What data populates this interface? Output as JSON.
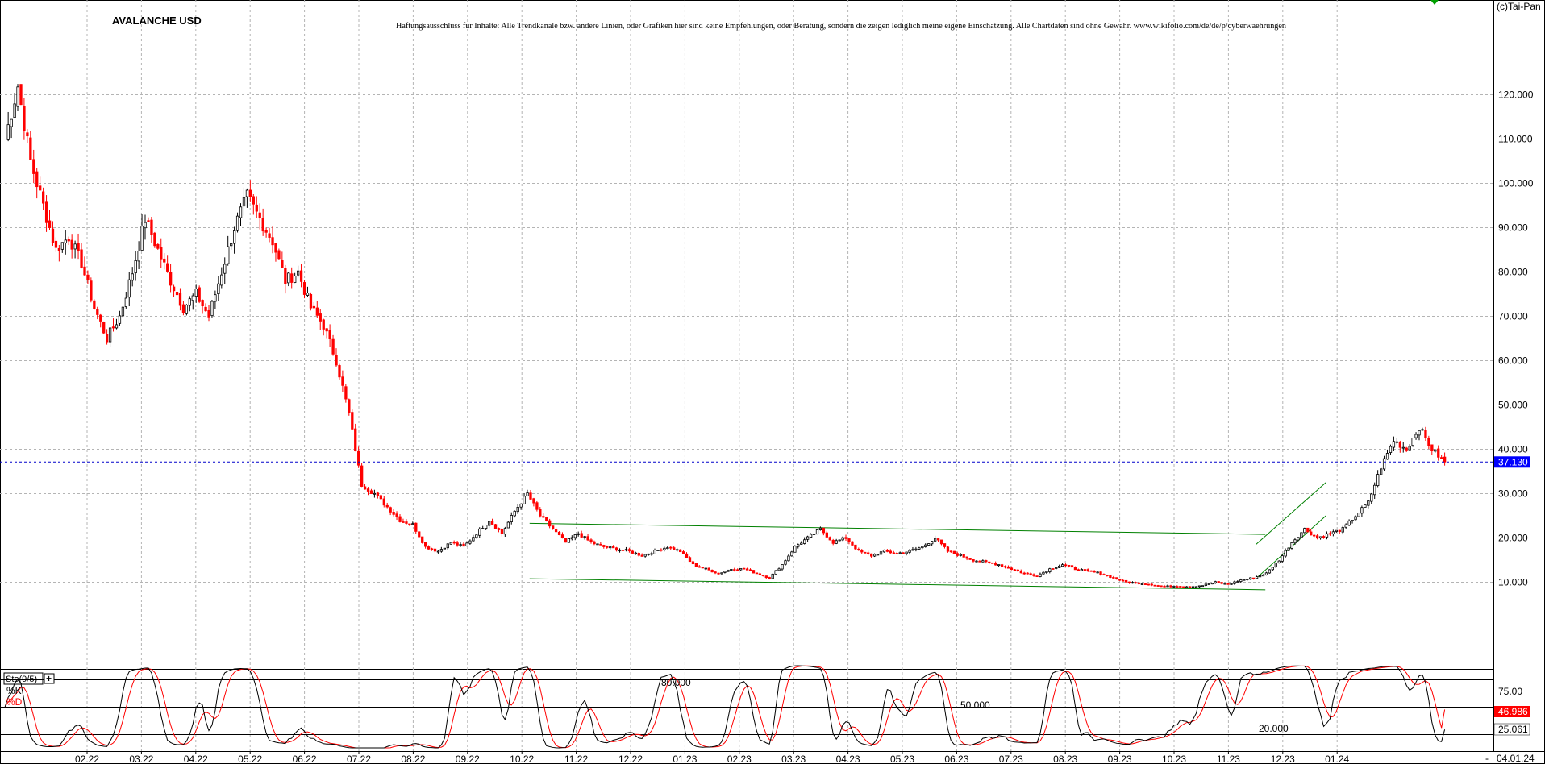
{
  "chart_data": {
    "type": "candlestick",
    "title": "AVALANCHE USD",
    "disclaimer": "Haftungsausschluss für Inhalte: Alle Trendkanäle bzw. andere Linien, oder Grafiken hier sind keine Empfehlungen, oder Beratung, sondern die zeigen lediglich meine eigene Einschätzung. Alle Chartdaten sind ohne Gewähr.  www.wikifolio.com/de/de/p/cyberwaehrungen",
    "copyright": "(c)Tai-Pan",
    "last_price": 37.13,
    "last_price_label": "37.130",
    "ylim": [
      0,
      124
    ],
    "y_ticks": [
      "10.000",
      "20.000",
      "30.000",
      "40.000",
      "50.000",
      "60.000",
      "70.000",
      "80.000",
      "90.000",
      "100.000",
      "110.000",
      "120.000"
    ],
    "x_ticks": [
      "02.22",
      "03.22",
      "04.22",
      "05.22",
      "06.22",
      "07.22",
      "08.22",
      "09.22",
      "10.22",
      "11.22",
      "12.22",
      "01.23",
      "02.23",
      "03.23",
      "04.23",
      "05.23",
      "06.23",
      "07.23",
      "08.23",
      "09.23",
      "10.23",
      "11.23",
      "12.23",
      "01.24"
    ],
    "x_end_label": "04.01.24",
    "colors": {
      "up": "#000000",
      "down": "#ff0000",
      "trendline": "#008000",
      "last_price_bg": "#0000ff",
      "k_line": "#000000",
      "d_line": "#ff0000",
      "d_value_bg": "#ff0000"
    },
    "price_anchors": [
      [
        0,
        110
      ],
      [
        4,
        122
      ],
      [
        8,
        105
      ],
      [
        12,
        95
      ],
      [
        16,
        85
      ],
      [
        20,
        88
      ],
      [
        24,
        82
      ],
      [
        28,
        72
      ],
      [
        32,
        65
      ],
      [
        36,
        70
      ],
      [
        40,
        80
      ],
      [
        44,
        92
      ],
      [
        48,
        85
      ],
      [
        52,
        78
      ],
      [
        56,
        72
      ],
      [
        60,
        75
      ],
      [
        64,
        70
      ],
      [
        68,
        80
      ],
      [
        72,
        90
      ],
      [
        76,
        97
      ],
      [
        80,
        92
      ],
      [
        84,
        87
      ],
      [
        88,
        78
      ],
      [
        92,
        80
      ],
      [
        96,
        72
      ],
      [
        100,
        68
      ],
      [
        104,
        60
      ],
      [
        108,
        48
      ],
      [
        112,
        32
      ],
      [
        116,
        30
      ],
      [
        120,
        27
      ],
      [
        124,
        24
      ],
      [
        128,
        23
      ],
      [
        132,
        18
      ],
      [
        136,
        17
      ],
      [
        140,
        19
      ],
      [
        144,
        18
      ],
      [
        148,
        21
      ],
      [
        152,
        24
      ],
      [
        156,
        21
      ],
      [
        160,
        26
      ],
      [
        164,
        30
      ],
      [
        168,
        25
      ],
      [
        172,
        22
      ],
      [
        176,
        19
      ],
      [
        180,
        21
      ],
      [
        184,
        19
      ],
      [
        188,
        18
      ],
      [
        192,
        17.5
      ],
      [
        196,
        17
      ],
      [
        200,
        16
      ],
      [
        204,
        17
      ],
      [
        208,
        18
      ],
      [
        212,
        17
      ],
      [
        216,
        14
      ],
      [
        220,
        13
      ],
      [
        224,
        12
      ],
      [
        228,
        13
      ],
      [
        232,
        13
      ],
      [
        236,
        12
      ],
      [
        240,
        11
      ],
      [
        244,
        14
      ],
      [
        248,
        18
      ],
      [
        252,
        20
      ],
      [
        256,
        22
      ],
      [
        260,
        19
      ],
      [
        264,
        20
      ],
      [
        268,
        17
      ],
      [
        272,
        16
      ],
      [
        276,
        17
      ],
      [
        280,
        16.5
      ],
      [
        284,
        17
      ],
      [
        288,
        18
      ],
      [
        292,
        20
      ],
      [
        296,
        17
      ],
      [
        300,
        16
      ],
      [
        304,
        15
      ],
      [
        308,
        14.5
      ],
      [
        312,
        14
      ],
      [
        316,
        13
      ],
      [
        320,
        12
      ],
      [
        324,
        11.5
      ],
      [
        328,
        13
      ],
      [
        332,
        14
      ],
      [
        336,
        13
      ],
      [
        340,
        12.5
      ],
      [
        344,
        12
      ],
      [
        348,
        11
      ],
      [
        352,
        10
      ],
      [
        356,
        9.8
      ],
      [
        360,
        9.5
      ],
      [
        364,
        9
      ],
      [
        368,
        9.2
      ],
      [
        372,
        9
      ],
      [
        376,
        9.3
      ],
      [
        380,
        10
      ],
      [
        384,
        9.5
      ],
      [
        388,
        10.5
      ],
      [
        392,
        11
      ],
      [
        396,
        12
      ],
      [
        400,
        15
      ],
      [
        404,
        19
      ],
      [
        408,
        22
      ],
      [
        412,
        20
      ],
      [
        416,
        21
      ],
      [
        420,
        22
      ],
      [
        424,
        25
      ],
      [
        428,
        28
      ],
      [
        432,
        36
      ],
      [
        436,
        42
      ],
      [
        440,
        40
      ],
      [
        444,
        45
      ],
      [
        448,
        40
      ],
      [
        452,
        37.13
      ]
    ],
    "trendlines": [
      {
        "from": [
          165,
          23.3
        ],
        "to": [
          396,
          20.8
        ]
      },
      {
        "from": [
          165,
          10.8
        ],
        "to": [
          396,
          8.3
        ]
      },
      {
        "from": [
          393,
          18.5
        ],
        "to": [
          415,
          32.5
        ]
      },
      {
        "from": [
          393,
          10.8
        ],
        "to": [
          415,
          25
        ]
      }
    ],
    "stochastic": {
      "label": "Sto(9/5)",
      "k_label": "%K",
      "d_label": "%D",
      "levels": [
        80,
        50,
        20
      ],
      "level_labels": [
        "80.000",
        "50.000",
        "20.000"
      ],
      "axis_ticks": [
        "75.00"
      ],
      "k_last": 25.061,
      "d_last": 46.986,
      "k_last_label": "25.061",
      "d_last_label": "46.986"
    }
  }
}
